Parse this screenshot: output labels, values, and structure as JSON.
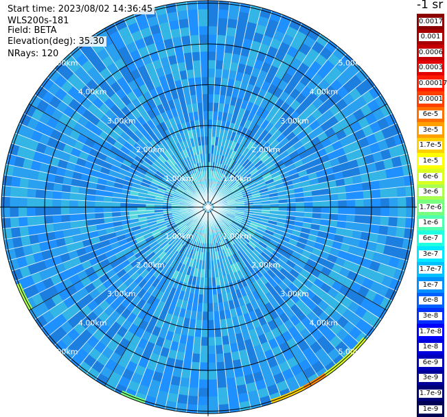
{
  "header": {
    "start_time": "Start time: 2023/08/02 14:36:45",
    "instrument": "WLS200s-181",
    "field": "Field: BETA",
    "elevation": "Elevation(deg): 35.30",
    "nrays": "NRays: 120"
  },
  "units": "-1 sr",
  "range_ring_labels": [
    "1.00km",
    "2.00km",
    "3.00km",
    "4.00km",
    "5.00km"
  ],
  "colorbar": {
    "labels": [
      "0.0017",
      "0.001",
      "0.0006",
      "0.0003",
      "0.00017",
      "0.0001",
      "6e-5",
      "3e-5",
      "1.7e-5",
      "1e-5",
      "6e-6",
      "3e-6",
      "1.7e-6",
      "1e-6",
      "6e-7",
      "3e-7",
      "1.7e-7",
      "1e-7",
      "6e-8",
      "3e-8",
      "1.7e-8",
      "1e-8",
      "6e-9",
      "3e-9",
      "1.7e-9",
      "1e-9"
    ],
    "colors": [
      "#8b0000",
      "#a80000",
      "#c60000",
      "#e20000",
      "#ff1a00",
      "#ff4000",
      "#ff7000",
      "#ffa000",
      "#ffd000",
      "#ffff00",
      "#d8ff20",
      "#a8ff50",
      "#78ff80",
      "#50ffb0",
      "#20ffe0",
      "#00e8ff",
      "#00c0ff",
      "#0090ff",
      "#0060ff",
      "#0030ff",
      "#0000ff",
      "#0000dd",
      "#0000bb",
      "#000099",
      "#000077",
      "#000055"
    ]
  },
  "ppi": {
    "background_colors": [
      "#1e90ff",
      "#2aa0f0",
      "#33b5e5",
      "#1c7fe0",
      "#3fc8e8",
      "#54d8dc",
      "#2f6fe8"
    ]
  }
}
